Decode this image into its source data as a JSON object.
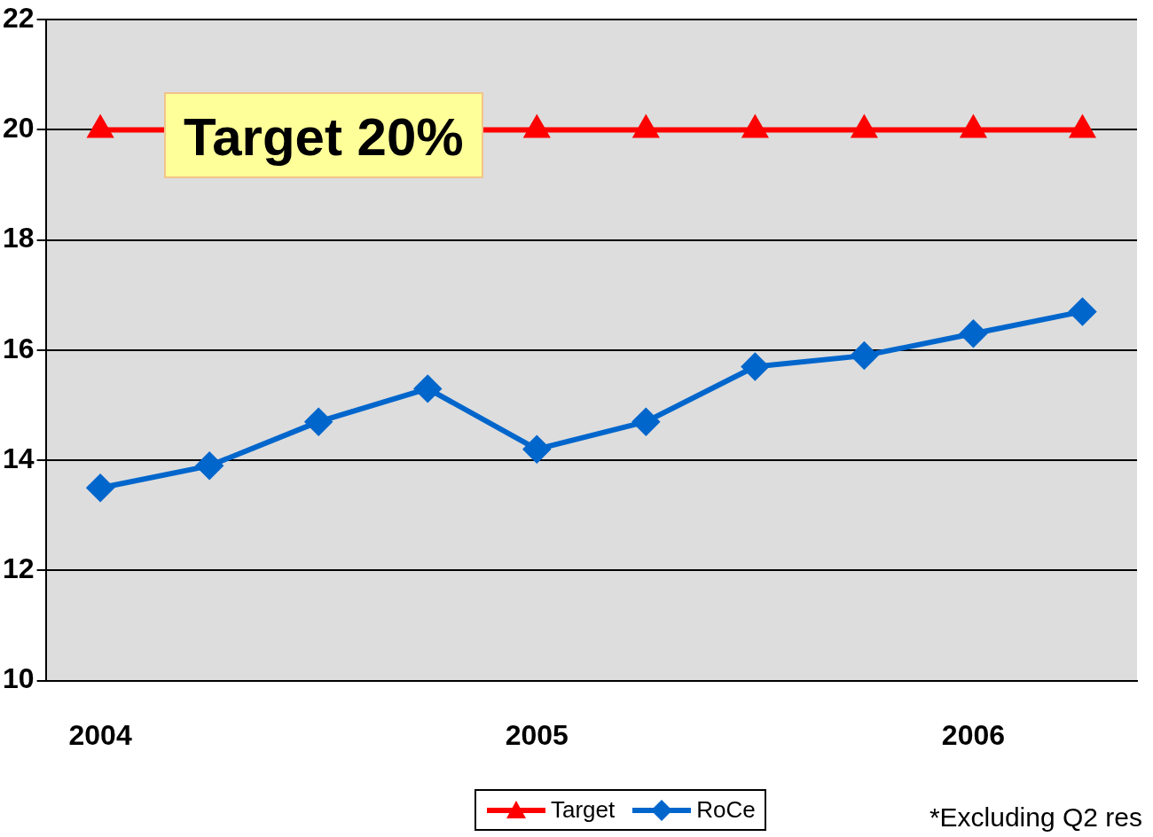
{
  "chart_data": {
    "type": "line",
    "categories": [
      "2004",
      null,
      null,
      null,
      "2005",
      null,
      null,
      null,
      "2006",
      null
    ],
    "series": [
      {
        "name": "Target",
        "color": "#ff0000",
        "marker": "triangle",
        "values": [
          20,
          null,
          null,
          null,
          20,
          20,
          20,
          20,
          20,
          20
        ]
      },
      {
        "name": "RoCe",
        "color": "#0066cc",
        "marker": "diamond",
        "values": [
          13.5,
          13.9,
          14.7,
          15.3,
          14.2,
          14.7,
          15.7,
          15.9,
          16.3,
          16.7
        ]
      }
    ],
    "ylim": [
      10,
      22
    ],
    "yticks": [
      10,
      12,
      14,
      16,
      18,
      20,
      22
    ],
    "grid": "y",
    "legend": "bottom",
    "annotations": [
      "Target 20%",
      "*Excluding Q2 res"
    ]
  }
}
